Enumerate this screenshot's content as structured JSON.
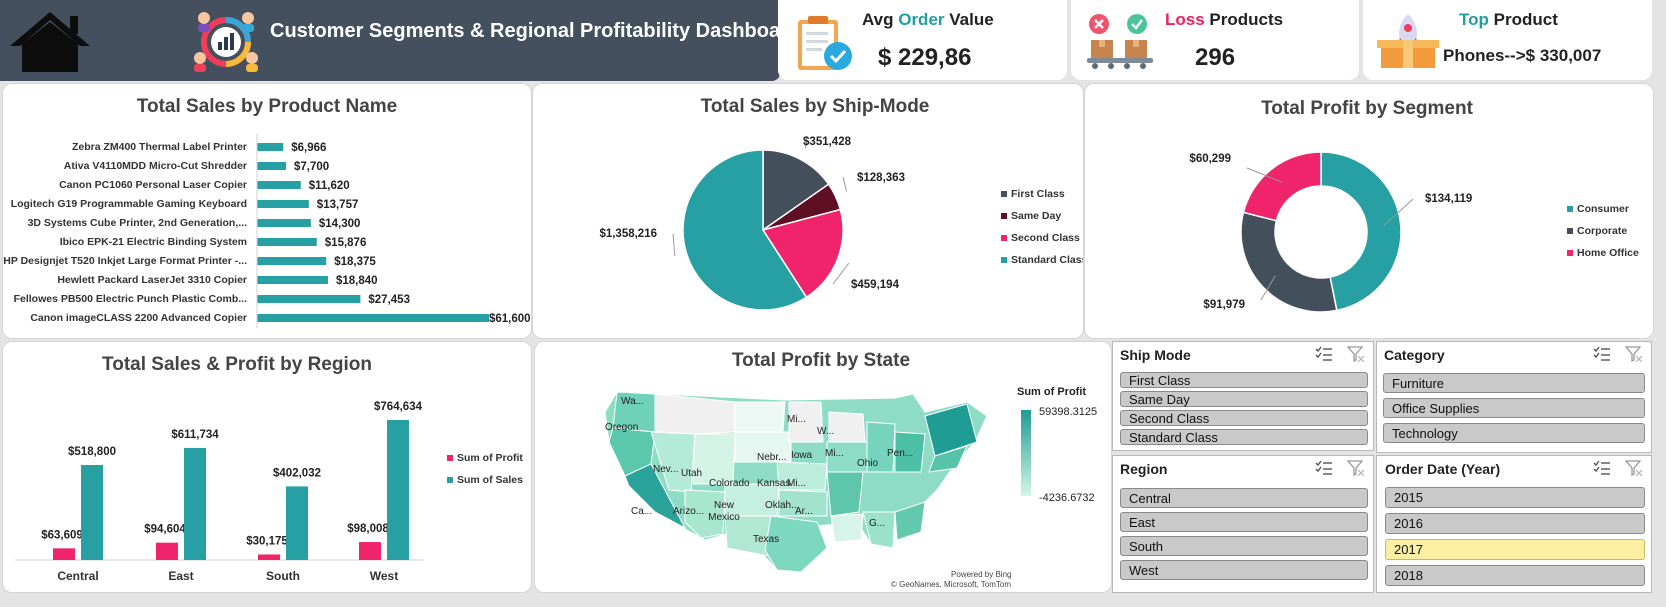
{
  "header": {
    "title": "Customer Segments & Regional Profitability Dashboard",
    "home_icon": "home-icon",
    "logo_icon": "segments-chart-icon"
  },
  "kpis": {
    "avg_order": {
      "title_pre": "Avg ",
      "title_accent": "Order",
      "title_post": " Value",
      "value": "$ 229,86",
      "accent_color": "#1fa0a0",
      "icon": "clipboard-check-icon"
    },
    "loss_products": {
      "title_accent": "Loss",
      "title_post": " Products",
      "value": "296",
      "accent_color": "#ef2060",
      "icon": "boxes-conveyor-icon"
    },
    "top_product": {
      "title_accent": "Top",
      "title_post": " Product",
      "value": "Phones-->$ 330,007",
      "accent_color": "#1fa0a0",
      "icon": "rocket-box-icon"
    }
  },
  "colors": {
    "teal": "#26a0a3",
    "dark": "#434f5a",
    "pink": "#f0246b",
    "maroon": "#5f0f23",
    "header_bg": "#44505d"
  },
  "chart_data": [
    {
      "id": "sales_by_product",
      "type": "bar",
      "orientation": "horizontal",
      "title": "Total Sales by Product Name",
      "categories": [
        "Zebra ZM400 Thermal Label Printer",
        "Ativa V4110MDD Micro-Cut Shredder",
        "Canon PC1060 Personal Laser Copier",
        "Logitech G19 Programmable Gaming Keyboard",
        "3D Systems Cube Printer, 2nd Generation,...",
        "Ibico EPK-21 Electric Binding System",
        "HP Designjet T520 Inkjet Large Format Printer -...",
        "Hewlett Packard LaserJet 3310 Copier",
        "Fellowes PB500 Electric Punch Plastic Comb...",
        "Canon imageCLASS 2200 Advanced Copier"
      ],
      "values": [
        6966,
        7700,
        11620,
        13757,
        14300,
        15876,
        18375,
        18840,
        27453,
        61600
      ],
      "labels": [
        "$6,966",
        "$7,700",
        "$11,620",
        "$13,757",
        "$14,300",
        "$15,876",
        "$18,375",
        "$18,840",
        "$27,453",
        "$61,600"
      ],
      "xlim": [
        0,
        61600
      ]
    },
    {
      "id": "sales_by_shipmode",
      "type": "pie",
      "title": "Total Sales by Ship-Mode",
      "categories": [
        "First Class",
        "Same Day",
        "Second Class",
        "Standard Class"
      ],
      "values": [
        351428,
        128363,
        459194,
        1358216
      ],
      "labels": [
        "$351,428",
        "$128,363",
        "$459,194",
        "$1,358,216"
      ],
      "legend": "right"
    },
    {
      "id": "profit_by_segment",
      "type": "pie",
      "donut": true,
      "title": "Total Profit by Segment",
      "categories": [
        "Consumer",
        "Corporate",
        "Home Office"
      ],
      "values": [
        134119,
        91979,
        60299
      ],
      "labels": [
        "$134,119",
        "$91,979",
        "$60,299"
      ],
      "legend": "right"
    },
    {
      "id": "sales_profit_by_region",
      "type": "bar",
      "title": "Total Sales & Profit by Region",
      "categories": [
        "Central",
        "East",
        "South",
        "West"
      ],
      "series": [
        {
          "name": "Sum of Profit",
          "values": [
            63609,
            94604,
            30175,
            98008
          ],
          "labels": [
            "$63,609",
            "$94,604",
            "$30,175",
            "$98,008"
          ]
        },
        {
          "name": "Sum of Sales",
          "values": [
            518800,
            611734,
            402032,
            764634
          ],
          "labels": [
            "$518,800",
            "$611,734",
            "$402,032",
            "$764,634"
          ]
        }
      ],
      "ylim": [
        0,
        764634
      ],
      "legend": "right"
    },
    {
      "id": "profit_by_state",
      "type": "heatmap",
      "title": "Total Profit by State",
      "legend_title": "Sum of Profit",
      "legend_max": "59398.3125",
      "legend_min": "-4236.6732",
      "state_labels": [
        "Wa...",
        "Oregon",
        "Nev...",
        "Ca...",
        "Utah",
        "Arizo...",
        "Colorado",
        "New Mexico",
        "Texas",
        "Nebr...",
        "Kansas",
        "Oklah...",
        "Iowa",
        "Mi...",
        "Mi...",
        "W...",
        "Mi...",
        "Ohio",
        "Ar...",
        "Pen...",
        "G..."
      ],
      "attribution_1": "Powered by Bing",
      "attribution_2": "© GeoNames, Microsoft, TomTom"
    }
  ],
  "slicers": {
    "ship_mode": {
      "title": "Ship Mode",
      "items": [
        "First Class",
        "Same Day",
        "Second Class",
        "Standard Class"
      ]
    },
    "category": {
      "title": "Category",
      "items": [
        "Furniture",
        "Office Supplies",
        "Technology"
      ]
    },
    "region": {
      "title": "Region",
      "items": [
        "Central",
        "East",
        "South",
        "West"
      ]
    },
    "order_date": {
      "title": "Order Date (Year)",
      "items": [
        "2015",
        "2016",
        "2017",
        "2018"
      ],
      "selected": "2017"
    }
  }
}
